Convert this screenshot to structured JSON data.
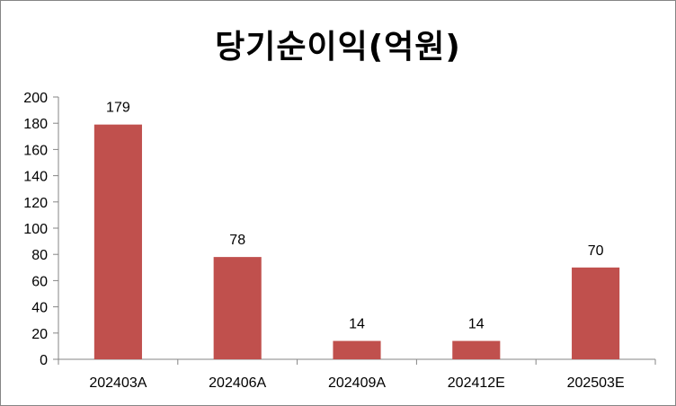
{
  "chart_data": {
    "type": "bar",
    "title": "당기순이익(억원)",
    "categories": [
      "202403A",
      "202406A",
      "202409A",
      "202412E",
      "202503E"
    ],
    "values": [
      179,
      78,
      14,
      14,
      70
    ],
    "ylim": [
      0,
      200
    ],
    "yticks": [
      0,
      20,
      40,
      60,
      80,
      100,
      120,
      140,
      160,
      180,
      200
    ],
    "xlabel": "",
    "ylabel": "",
    "grid": false,
    "legend": "none",
    "data_labels": true,
    "bar_color": "#C0504D"
  }
}
